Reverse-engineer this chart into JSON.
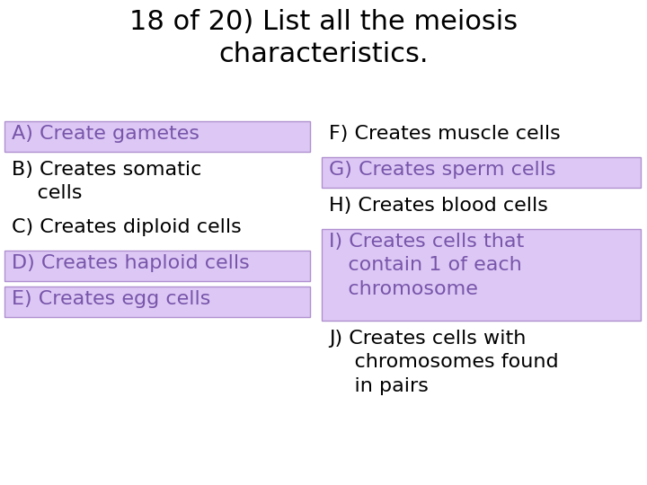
{
  "title": "18 of 20) List all the meiosis\ncharacteristics.",
  "title_fontsize": 22,
  "background_color": "#ffffff",
  "text_color_normal": "#000000",
  "text_color_boxed": "#7755aa",
  "box_facecolor": "#ddc8f5",
  "box_edgecolor": "#b090d0",
  "left_items": [
    {
      "text": "A) Create gametes",
      "boxed": true
    },
    {
      "text": "B) Creates somatic\n    cells",
      "boxed": false
    },
    {
      "text": "C) Creates diploid cells",
      "boxed": false
    },
    {
      "text": "D) Creates haploid cells",
      "boxed": true
    },
    {
      "text": "E) Creates egg cells",
      "boxed": true
    }
  ],
  "right_items": [
    {
      "text": "F) Creates muscle cells",
      "boxed": false
    },
    {
      "text": "G) Creates sperm cells",
      "boxed": true
    },
    {
      "text": "H) Creates blood cells",
      "boxed": false
    },
    {
      "text": "I) Creates cells that\n   contain 1 of each\n   chromosome",
      "boxed": true
    },
    {
      "text": "J) Creates cells with\n    chromosomes found\n    in pairs",
      "boxed": false
    }
  ]
}
